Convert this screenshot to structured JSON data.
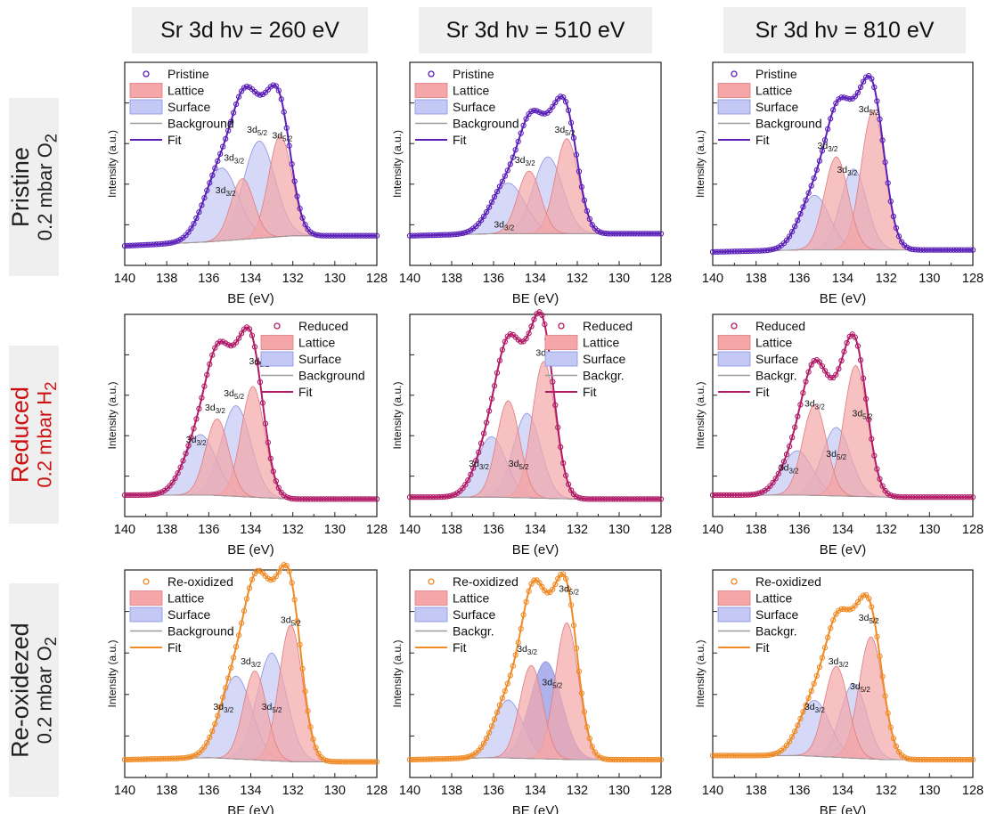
{
  "column_headers": [
    "Sr 3d hν = 260 eV",
    "Sr 3d hν = 510 eV",
    "Sr 3d hν = 810 eV"
  ],
  "row_headers": [
    {
      "state": "Pristine",
      "condition": "0.2 mbar O",
      "subscript": "2",
      "color": "#222222"
    },
    {
      "state": "Reduced",
      "condition": "0.2 mbar H",
      "subscript": "2",
      "color": "#cc1111"
    },
    {
      "state": "Re-oxidezed",
      "condition": "0.2 mbar O",
      "subscript": "2",
      "color": "#222222"
    }
  ],
  "colors": {
    "pristine": "#5b1fb8",
    "reduced": "#b01a66",
    "reoxidized": "#ef8a25",
    "lattice_fill": "#f4a6a8",
    "surface_fill": "#c4c8f4",
    "background_line": "#9a9a9a"
  },
  "chart_data": [
    {
      "type": "line",
      "row": 0,
      "col": 0,
      "ylabel": "Intensity (a.u.)",
      "xlabel": "BE (eV)",
      "xlim": [
        140,
        128
      ],
      "x_ticks": [
        140,
        138,
        136,
        134,
        132,
        130,
        128
      ],
      "sample": "pristine",
      "legend": [
        "Pristine",
        "Lattice",
        "Surface",
        "Background",
        "Fit"
      ],
      "legend_position": "top-left",
      "background": [
        {
          "x": 140,
          "y": 0.07
        },
        {
          "x": 136,
          "y": 0.09
        },
        {
          "x": 132,
          "y": 0.12
        },
        {
          "x": 128,
          "y": 0.12
        }
      ],
      "components": [
        {
          "kind": "lattice",
          "center": 132.6,
          "height": 0.5,
          "width": 0.55
        },
        {
          "kind": "lattice",
          "center": 134.4,
          "height": 0.3,
          "width": 0.55
        },
        {
          "kind": "surface",
          "center": 133.6,
          "height": 0.48,
          "width": 0.75
        },
        {
          "kind": "surface",
          "center": 135.4,
          "height": 0.36,
          "width": 0.8
        }
      ],
      "labels": [
        {
          "text": "3d",
          "sub": "3/2",
          "x": 135.2,
          "y": 0.33
        },
        {
          "text": "3d",
          "sub": "3/2",
          "x": 134.8,
          "y": 0.49
        },
        {
          "text": "3d",
          "sub": "5/2",
          "x": 133.7,
          "y": 0.63
        },
        {
          "text": "3d",
          "sub": "5/2",
          "x": 132.5,
          "y": 0.6
        }
      ]
    },
    {
      "type": "line",
      "row": 0,
      "col": 1,
      "ylabel": "Intensity (a.u.)",
      "xlabel": "BE (eV)",
      "xlim": [
        140,
        128
      ],
      "x_ticks": [
        140,
        138,
        136,
        134,
        132,
        130,
        128
      ],
      "sample": "pristine",
      "legend": [
        "Pristine",
        "Lattice",
        "Surface",
        "Background",
        "Fit"
      ],
      "legend_position": "top-left",
      "background": [
        {
          "x": 140,
          "y": 0.12
        },
        {
          "x": 136,
          "y": 0.13
        },
        {
          "x": 132,
          "y": 0.13
        },
        {
          "x": 128,
          "y": 0.13
        }
      ],
      "components": [
        {
          "kind": "lattice",
          "center": 132.5,
          "height": 0.47,
          "width": 0.55
        },
        {
          "kind": "lattice",
          "center": 134.3,
          "height": 0.31,
          "width": 0.55
        },
        {
          "kind": "surface",
          "center": 133.4,
          "height": 0.38,
          "width": 0.7
        },
        {
          "kind": "surface",
          "center": 135.3,
          "height": 0.25,
          "width": 0.8
        }
      ],
      "labels": [
        {
          "text": "3d",
          "sub": "3/2",
          "x": 135.5,
          "y": 0.16
        },
        {
          "text": "3d",
          "sub": "3/2",
          "x": 134.5,
          "y": 0.48
        },
        {
          "text": "3d",
          "sub": "5/2",
          "x": 132.6,
          "y": 0.63
        }
      ]
    },
    {
      "type": "line",
      "row": 0,
      "col": 2,
      "ylabel": "Intensity (a.u.)",
      "xlabel": "BE (eV)",
      "xlim": [
        140,
        128
      ],
      "x_ticks": [
        140,
        138,
        136,
        134,
        132,
        130,
        128
      ],
      "sample": "pristine",
      "legend": [
        "Pristine",
        "Lattice",
        "Surface",
        "Background",
        "Fit"
      ],
      "legend_position": "top-left",
      "background": [
        {
          "x": 140,
          "y": 0.04
        },
        {
          "x": 136,
          "y": 0.05
        },
        {
          "x": 132,
          "y": 0.05
        },
        {
          "x": 128,
          "y": 0.05
        }
      ],
      "components": [
        {
          "kind": "lattice",
          "center": 132.6,
          "height": 0.69,
          "width": 0.55
        },
        {
          "kind": "lattice",
          "center": 134.3,
          "height": 0.46,
          "width": 0.55
        },
        {
          "kind": "surface",
          "center": 133.5,
          "height": 0.4,
          "width": 0.6
        },
        {
          "kind": "surface",
          "center": 135.3,
          "height": 0.27,
          "width": 0.7
        }
      ],
      "labels": [
        {
          "text": "3d",
          "sub": "3/2",
          "x": 134.7,
          "y": 0.55
        },
        {
          "text": "3d",
          "sub": "3/2",
          "x": 133.8,
          "y": 0.43
        },
        {
          "text": "3d",
          "sub": "5/2",
          "x": 132.8,
          "y": 0.73
        }
      ]
    },
    {
      "type": "line",
      "row": 1,
      "col": 0,
      "ylabel": "Intensity (a.u.)",
      "xlabel": "BE (eV)",
      "xlim": [
        140,
        128
      ],
      "x_ticks": [
        140,
        138,
        136,
        134,
        132,
        130,
        128
      ],
      "sample": "reduced",
      "legend": [
        "Reduced",
        "Lattice",
        "Surface",
        "Background",
        "Fit"
      ],
      "legend_position": "top-right",
      "background": [
        {
          "x": 140,
          "y": 0.08
        },
        {
          "x": 136,
          "y": 0.08
        },
        {
          "x": 132,
          "y": 0.06
        },
        {
          "x": 128,
          "y": 0.06
        }
      ],
      "components": [
        {
          "kind": "lattice",
          "center": 133.9,
          "height": 0.55,
          "width": 0.55
        },
        {
          "kind": "lattice",
          "center": 135.6,
          "height": 0.38,
          "width": 0.55
        },
        {
          "kind": "surface",
          "center": 134.7,
          "height": 0.45,
          "width": 0.7
        },
        {
          "kind": "surface",
          "center": 136.4,
          "height": 0.3,
          "width": 0.75
        }
      ],
      "labels": [
        {
          "text": "3d",
          "sub": "3/2",
          "x": 136.6,
          "y": 0.34
        },
        {
          "text": "3d",
          "sub": "3/2",
          "x": 135.7,
          "y": 0.5
        },
        {
          "text": "3d",
          "sub": "5/2",
          "x": 134.8,
          "y": 0.57
        },
        {
          "text": "3d",
          "sub": "5/2",
          "x": 133.6,
          "y": 0.73
        }
      ]
    },
    {
      "type": "line",
      "row": 1,
      "col": 1,
      "ylabel": "Intensity (a.u.)",
      "xlabel": "BE (eV)",
      "xlim": [
        140,
        128
      ],
      "x_ticks": [
        140,
        138,
        136,
        134,
        132,
        130,
        128
      ],
      "sample": "reduced",
      "legend": [
        "Reduced",
        "Lattice",
        "Surface",
        "Backgr.",
        "Fit"
      ],
      "legend_position": "top-right",
      "background": [
        {
          "x": 140,
          "y": 0.07
        },
        {
          "x": 136,
          "y": 0.07
        },
        {
          "x": 132,
          "y": 0.06
        },
        {
          "x": 128,
          "y": 0.06
        }
      ],
      "components": [
        {
          "kind": "lattice",
          "center": 133.6,
          "height": 0.68,
          "width": 0.55
        },
        {
          "kind": "lattice",
          "center": 135.3,
          "height": 0.48,
          "width": 0.55
        },
        {
          "kind": "surface",
          "center": 134.4,
          "height": 0.42,
          "width": 0.65
        },
        {
          "kind": "surface",
          "center": 136.1,
          "height": 0.3,
          "width": 0.7
        }
      ],
      "labels": [
        {
          "text": "3d",
          "sub": "3/2",
          "x": 136.7,
          "y": 0.22
        },
        {
          "text": "3d",
          "sub": "5/2",
          "x": 134.8,
          "y": 0.22
        },
        {
          "text": "3d",
          "sub": "5/2",
          "x": 133.5,
          "y": 0.77
        }
      ]
    },
    {
      "type": "line",
      "row": 1,
      "col": 2,
      "ylabel": "Intensity (a.u.)",
      "xlabel": "BE (eV)",
      "xlim": [
        140,
        128
      ],
      "x_ticks": [
        140,
        138,
        136,
        134,
        132,
        130,
        128
      ],
      "sample": "reduced",
      "legend": [
        "Reduced",
        "Lattice",
        "Surface",
        "Backgr.",
        "Fit"
      ],
      "legend_position": "top-left",
      "background": [
        {
          "x": 140,
          "y": 0.08
        },
        {
          "x": 136,
          "y": 0.08
        },
        {
          "x": 132,
          "y": 0.07
        },
        {
          "x": 128,
          "y": 0.07
        }
      ],
      "components": [
        {
          "kind": "lattice",
          "center": 133.4,
          "height": 0.65,
          "width": 0.55
        },
        {
          "kind": "lattice",
          "center": 135.3,
          "height": 0.45,
          "width": 0.55
        },
        {
          "kind": "surface",
          "center": 134.3,
          "height": 0.34,
          "width": 0.65
        },
        {
          "kind": "surface",
          "center": 136.1,
          "height": 0.22,
          "width": 0.7
        }
      ],
      "labels": [
        {
          "text": "3d",
          "sub": "3/2",
          "x": 136.5,
          "y": 0.2
        },
        {
          "text": "3d",
          "sub": "3/2",
          "x": 135.3,
          "y": 0.52
        },
        {
          "text": "3d",
          "sub": "5/2",
          "x": 134.3,
          "y": 0.27
        },
        {
          "text": "3d",
          "sub": "5/2",
          "x": 133.1,
          "y": 0.47
        }
      ]
    },
    {
      "type": "line",
      "row": 2,
      "col": 0,
      "ylabel": "Intensity (a.u.)",
      "xlabel": "BE (eV)",
      "xlim": [
        140,
        128
      ],
      "x_ticks": [
        140,
        138,
        136,
        134,
        132,
        130,
        128
      ],
      "sample": "reoxidized",
      "legend": [
        "Re-oxidized",
        "Lattice",
        "Surface",
        "Background",
        "Fit"
      ],
      "legend_position": "top-left",
      "background": [
        {
          "x": 140,
          "y": 0.06
        },
        {
          "x": 136,
          "y": 0.07
        },
        {
          "x": 132,
          "y": 0.05
        },
        {
          "x": 128,
          "y": 0.05
        }
      ],
      "components": [
        {
          "kind": "lattice",
          "center": 132.1,
          "height": 0.66,
          "width": 0.55
        },
        {
          "kind": "lattice",
          "center": 133.8,
          "height": 0.43,
          "width": 0.55
        },
        {
          "kind": "surface",
          "center": 133.0,
          "height": 0.52,
          "width": 0.7
        },
        {
          "kind": "surface",
          "center": 134.7,
          "height": 0.4,
          "width": 0.75
        }
      ],
      "labels": [
        {
          "text": "3d",
          "sub": "3/2",
          "x": 135.3,
          "y": 0.3
        },
        {
          "text": "3d",
          "sub": "3/2",
          "x": 134.0,
          "y": 0.52
        },
        {
          "text": "3d",
          "sub": "5/2",
          "x": 133.0,
          "y": 0.3
        },
        {
          "text": "3d",
          "sub": "5/2",
          "x": 132.1,
          "y": 0.72
        }
      ]
    },
    {
      "type": "line",
      "row": 2,
      "col": 1,
      "ylabel": "Intensity (a.u.)",
      "xlabel": "BE (eV)",
      "xlim": [
        140,
        128
      ],
      "x_ticks": [
        140,
        138,
        136,
        134,
        132,
        130,
        128
      ],
      "sample": "reoxidized",
      "legend": [
        "Re-oxidized",
        "Lattice",
        "Surface",
        "Backgr.",
        "Fit"
      ],
      "legend_position": "top-left",
      "background": [
        {
          "x": 140,
          "y": 0.06
        },
        {
          "x": 136,
          "y": 0.07
        },
        {
          "x": 132,
          "y": 0.06
        },
        {
          "x": 128,
          "y": 0.06
        }
      ],
      "components": [
        {
          "kind": "lattice",
          "center": 132.5,
          "height": 0.66,
          "width": 0.55
        },
        {
          "kind": "lattice",
          "center": 134.2,
          "height": 0.45,
          "width": 0.55
        },
        {
          "kind": "surface",
          "center": 133.5,
          "height": 0.47,
          "width": 0.75,
          "dark": true
        },
        {
          "kind": "surface",
          "center": 135.3,
          "height": 0.28,
          "width": 0.7
        }
      ],
      "labels": [
        {
          "text": "3d",
          "sub": "3/2",
          "x": 134.4,
          "y": 0.58
        },
        {
          "text": "3d",
          "sub": "5/2",
          "x": 133.2,
          "y": 0.42
        },
        {
          "text": "3d",
          "sub": "5/2",
          "x": 132.4,
          "y": 0.87
        }
      ]
    },
    {
      "type": "line",
      "row": 2,
      "col": 2,
      "ylabel": "Intensity (a.u.)",
      "xlabel": "BE (eV)",
      "xlim": [
        140,
        128
      ],
      "x_ticks": [
        140,
        138,
        136,
        134,
        132,
        130,
        128
      ],
      "sample": "reoxidized",
      "legend": [
        "Re-oxidized",
        "Lattice",
        "Surface",
        "Backgr.",
        "Fit"
      ],
      "legend_position": "top-left",
      "background": [
        {
          "x": 140,
          "y": 0.08
        },
        {
          "x": 136,
          "y": 0.08
        },
        {
          "x": 132,
          "y": 0.06
        },
        {
          "x": 128,
          "y": 0.06
        }
      ],
      "components": [
        {
          "kind": "lattice",
          "center": 132.7,
          "height": 0.59,
          "width": 0.55
        },
        {
          "kind": "lattice",
          "center": 134.3,
          "height": 0.44,
          "width": 0.55
        },
        {
          "kind": "surface",
          "center": 133.5,
          "height": 0.36,
          "width": 0.6
        },
        {
          "kind": "surface",
          "center": 135.3,
          "height": 0.27,
          "width": 0.7
        }
      ],
      "labels": [
        {
          "text": "3d",
          "sub": "3/2",
          "x": 135.3,
          "y": 0.3
        },
        {
          "text": "3d",
          "sub": "3/2",
          "x": 134.2,
          "y": 0.52
        },
        {
          "text": "3d",
          "sub": "5/2",
          "x": 133.2,
          "y": 0.4
        },
        {
          "text": "3d",
          "sub": "5/2",
          "x": 132.8,
          "y": 0.73
        }
      ]
    }
  ]
}
